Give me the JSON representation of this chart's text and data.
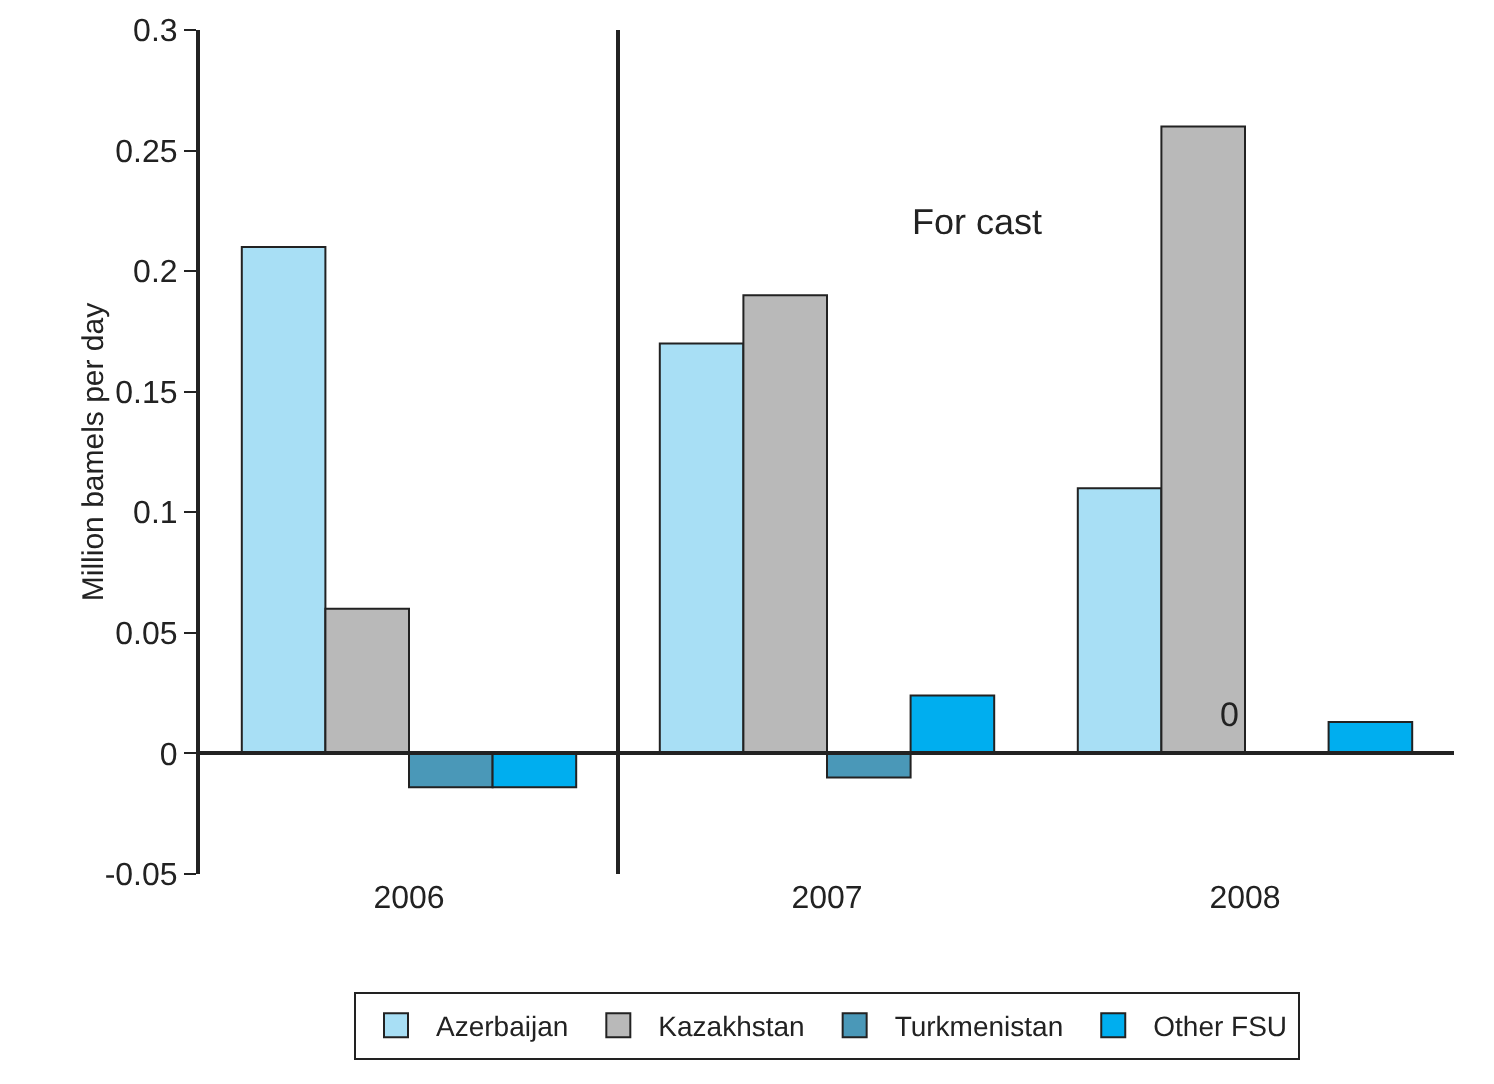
{
  "chart_data": {
    "type": "bar",
    "ylabel": "Million bamels per day",
    "categories": [
      "2006",
      "2007",
      "2008"
    ],
    "series": [
      {
        "name": "Azerbaijan",
        "color": "#a8dff5",
        "values": [
          0.21,
          0.17,
          0.11
        ]
      },
      {
        "name": "Kazakhstan",
        "color": "#b9b9b9",
        "values": [
          0.06,
          0.19,
          0.26
        ]
      },
      {
        "name": "Turkmenistan",
        "color": "#4a98b8",
        "values": [
          -0.014,
          -0.01,
          0
        ]
      },
      {
        "name": "Other FSU",
        "color": "#00aeef",
        "values": [
          -0.014,
          0.024,
          0.013
        ]
      }
    ],
    "ylim": [
      -0.05,
      0.3
    ],
    "yticks": [
      -0.05,
      0,
      0.05,
      0.1,
      0.15,
      0.2,
      0.25,
      0.3
    ],
    "legend": "bottom",
    "annotations": [
      "For cast",
      {
        "text": "0",
        "x": "2008",
        "y": 0
      }
    ]
  }
}
